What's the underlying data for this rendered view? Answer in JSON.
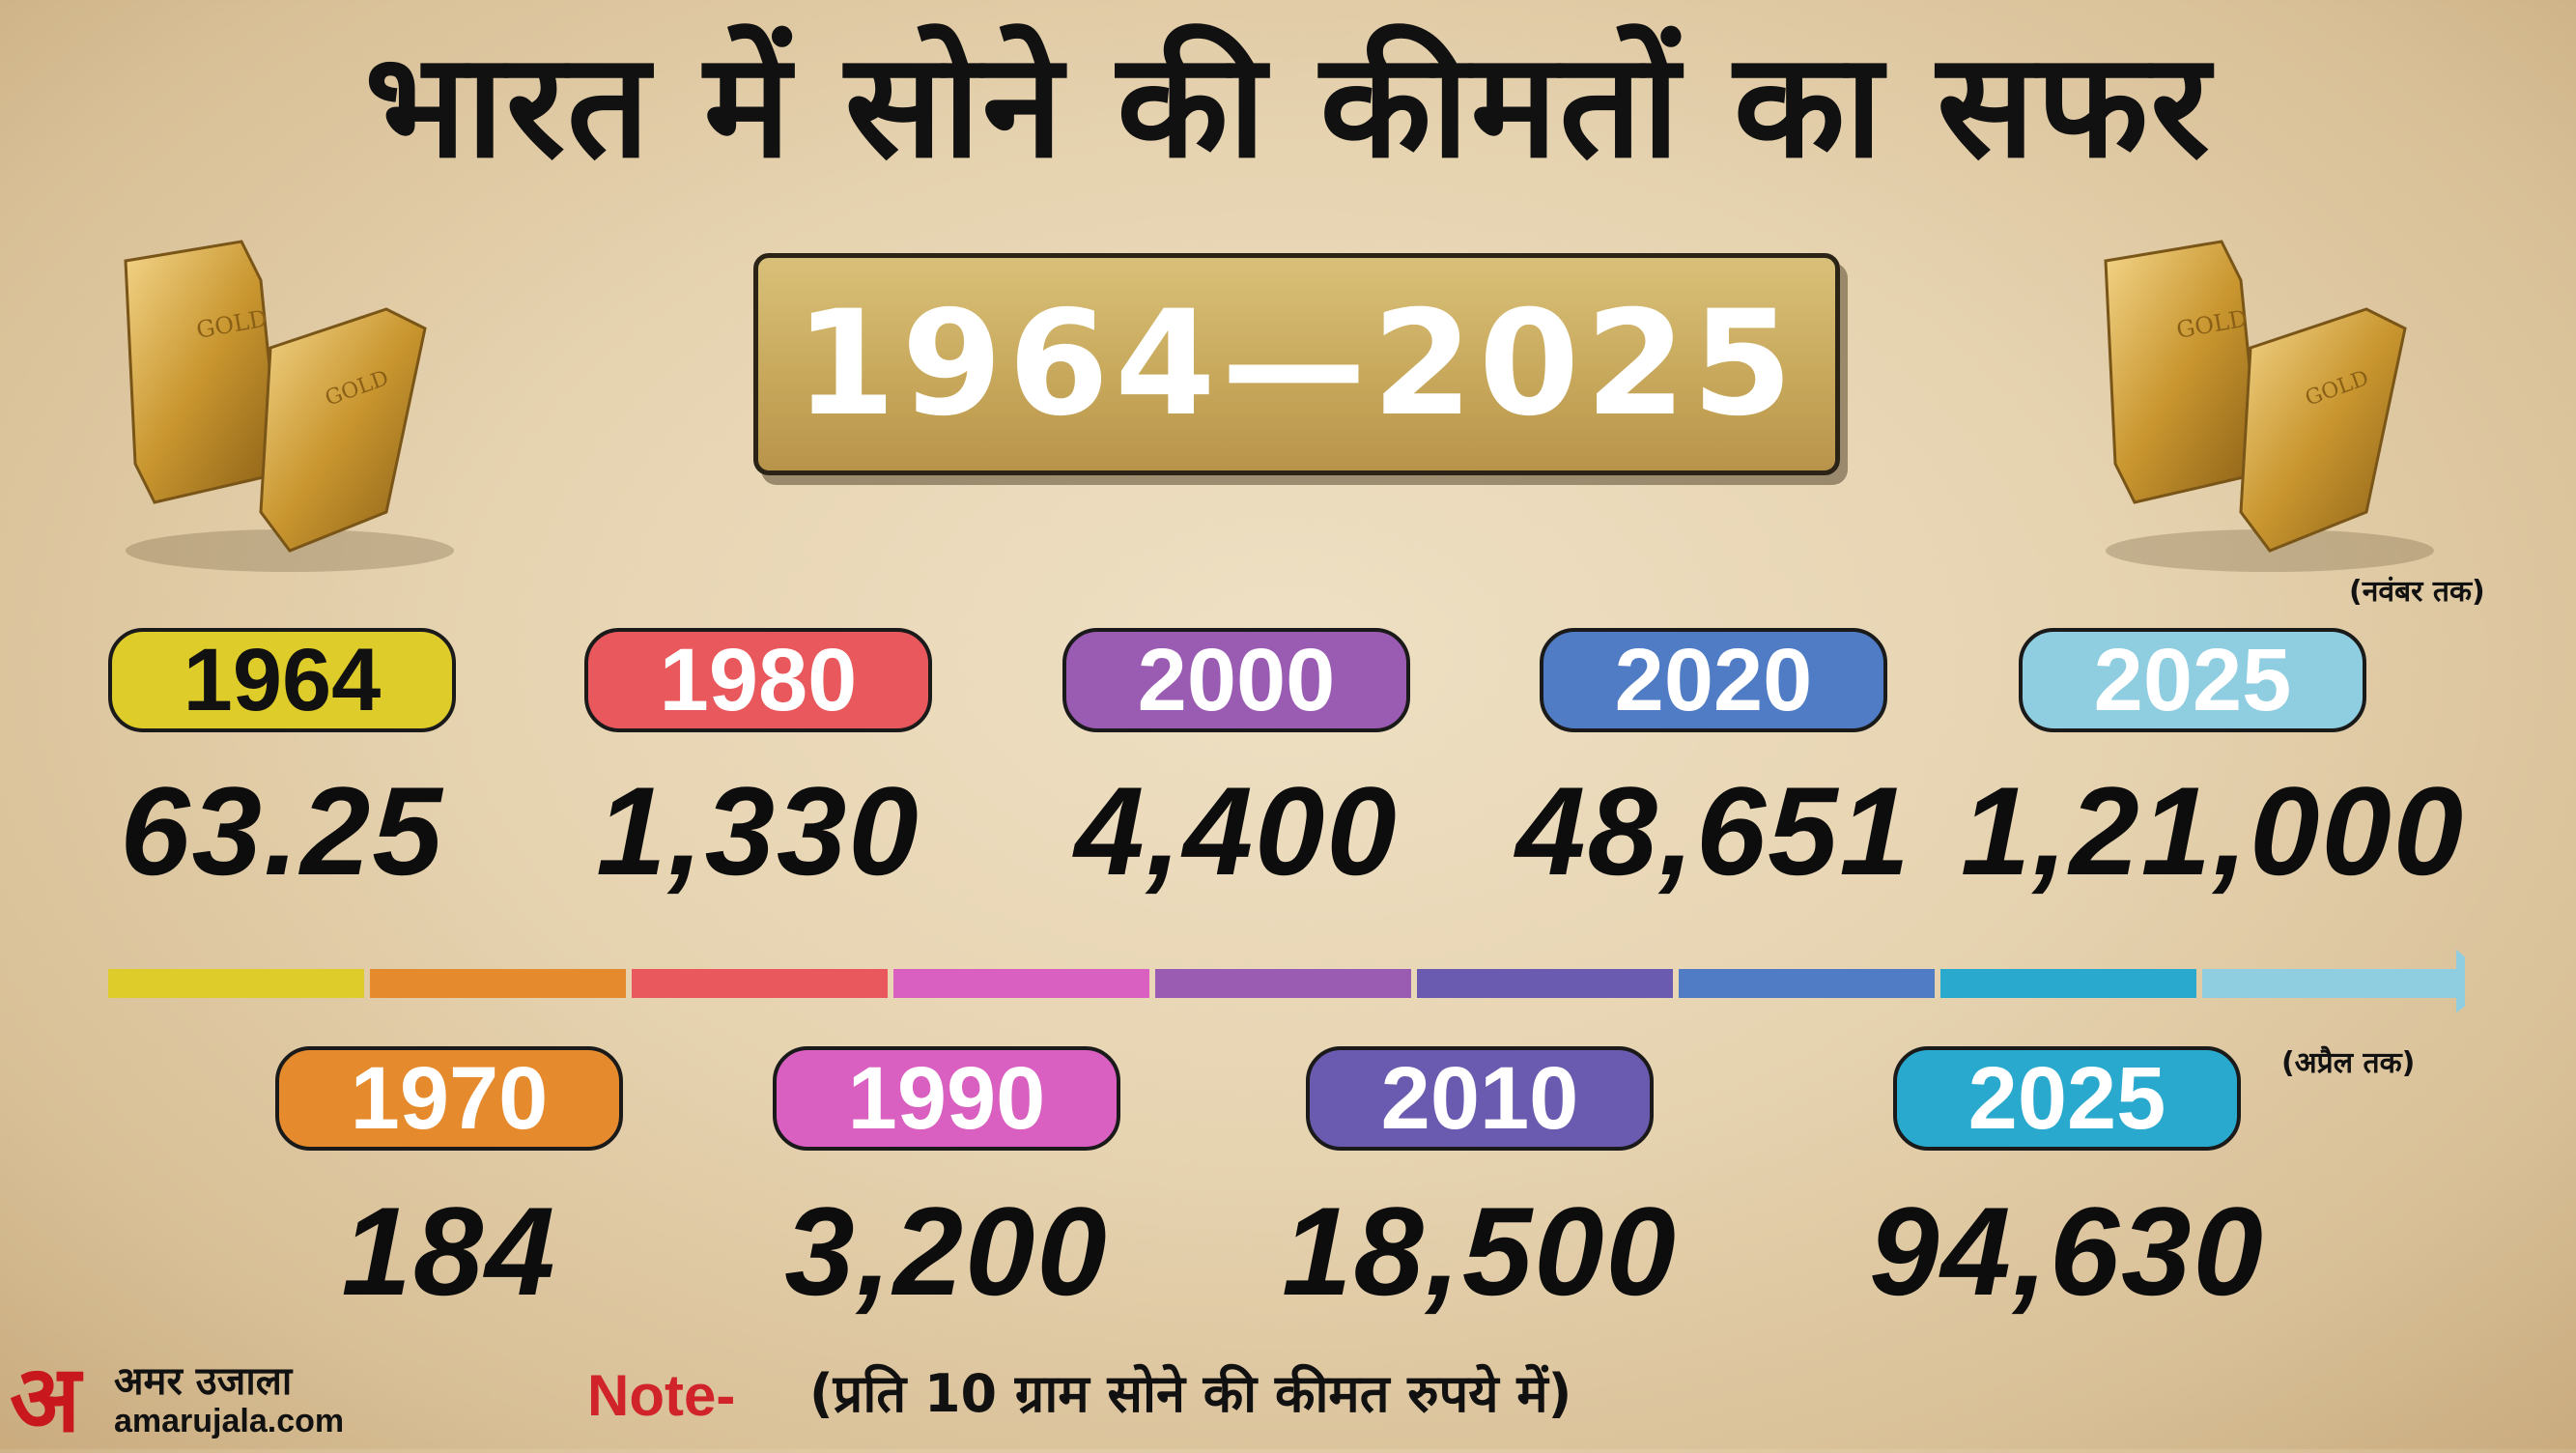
{
  "title": "भारत में सोने की कीमतों का सफर",
  "year_range": "1964—2025",
  "notes": {
    "november": "(नवंबर तक)",
    "april": "(अप्रैल तक)",
    "note_label": "Note-",
    "note_text": "(प्रति 10 ग्राम सोने की कीमत रुपये में)"
  },
  "brand": {
    "mark": "अ",
    "name": "अमर उजाला",
    "url": "amarujala.com"
  },
  "colors": {
    "title": "#111111",
    "note_label": "#d0242a",
    "brand": "#c8181e"
  },
  "chart_data": {
    "type": "table",
    "unit": "प्रति 10 ग्राम सोने की कीमत रुपये में",
    "entries": [
      {
        "year": "1964",
        "value": "63.25",
        "color": "#ddcc2a",
        "text_color": "#111111",
        "row": "top"
      },
      {
        "year": "1970",
        "value": "184",
        "color": "#e68a2e",
        "text_color": "#ffffff",
        "row": "bottom"
      },
      {
        "year": "1980",
        "value": "1,330",
        "color": "#e8585c",
        "text_color": "#ffffff",
        "row": "top"
      },
      {
        "year": "1990",
        "value": "3,200",
        "color": "#d95fc0",
        "text_color": "#ffffff",
        "row": "bottom"
      },
      {
        "year": "2000",
        "value": "4,400",
        "color": "#9a5bb2",
        "text_color": "#ffffff",
        "row": "top"
      },
      {
        "year": "2010",
        "value": "18,500",
        "color": "#6b5bb0",
        "text_color": "#ffffff",
        "row": "bottom"
      },
      {
        "year": "2020",
        "value": "48,651",
        "color": "#4f7cc4",
        "text_color": "#ffffff",
        "row": "top"
      },
      {
        "year": "2025",
        "value": "94,630",
        "color": "#2aa9cf",
        "text_color": "#ffffff",
        "row": "bottom",
        "note": "(अप्रैल तक)"
      },
      {
        "year": "2025",
        "value": "1,21,000",
        "color": "#8fcde0",
        "text_color": "#ffffff",
        "row": "top",
        "note": "(नवंबर तक)"
      }
    ],
    "timeline_colors": [
      "#ddcc2a",
      "#e68a2e",
      "#e8585c",
      "#d95fc0",
      "#9a5bb2",
      "#6b5bb0",
      "#4f7cc4",
      "#2aa9cf",
      "#8fcde0"
    ]
  }
}
